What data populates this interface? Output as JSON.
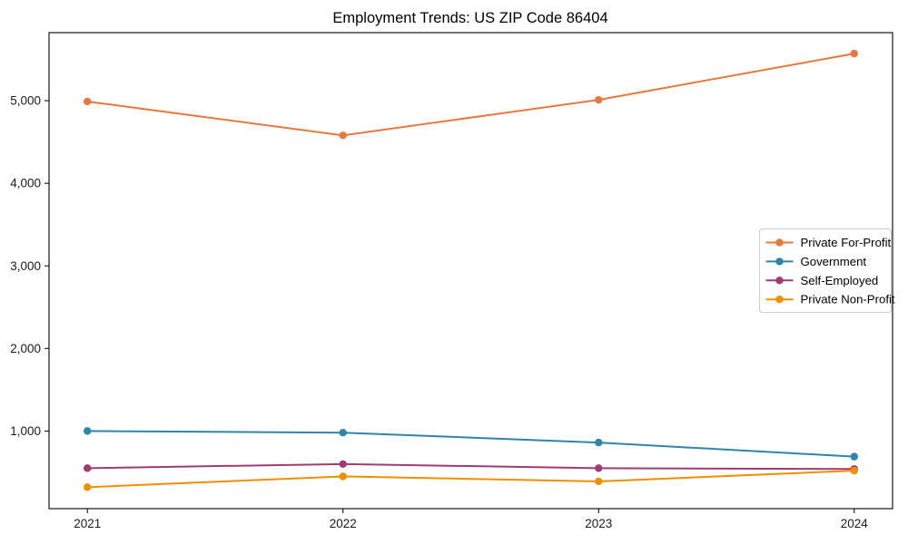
{
  "chart_data": {
    "type": "line",
    "title": "Employment Trends: US ZIP Code 86404",
    "xlabel": "",
    "ylabel": "",
    "x": [
      2021,
      2022,
      2023,
      2024
    ],
    "x_tick_labels": [
      "2021",
      "2022",
      "2023",
      "2024"
    ],
    "y_ticks": [
      1000,
      2000,
      3000,
      4000,
      5000
    ],
    "y_tick_labels": [
      "1,000",
      "2,000",
      "3,000",
      "4,000",
      "5,000"
    ],
    "xlim": [
      2020.85,
      2024.15
    ],
    "ylim": [
      60,
      5824
    ],
    "grid": false,
    "legend_position": "center-right",
    "marker": "circle",
    "series": [
      {
        "name": "Private For-Profit",
        "color": "#E8773D",
        "values": [
          4990,
          4580,
          5010,
          5570
        ]
      },
      {
        "name": "Government",
        "color": "#2E86AB",
        "values": [
          1000,
          980,
          860,
          690
        ]
      },
      {
        "name": "Self-Employed",
        "color": "#A23B72",
        "values": [
          550,
          600,
          550,
          540
        ]
      },
      {
        "name": "Private Non-Profit",
        "color": "#F18F01",
        "values": [
          320,
          450,
          390,
          520
        ]
      }
    ],
    "colors": {
      "spine": "#000000",
      "tick_label": "#1a1a1a",
      "title": "#000000",
      "legend_border": "#cccccc",
      "background": "#ffffff"
    }
  }
}
